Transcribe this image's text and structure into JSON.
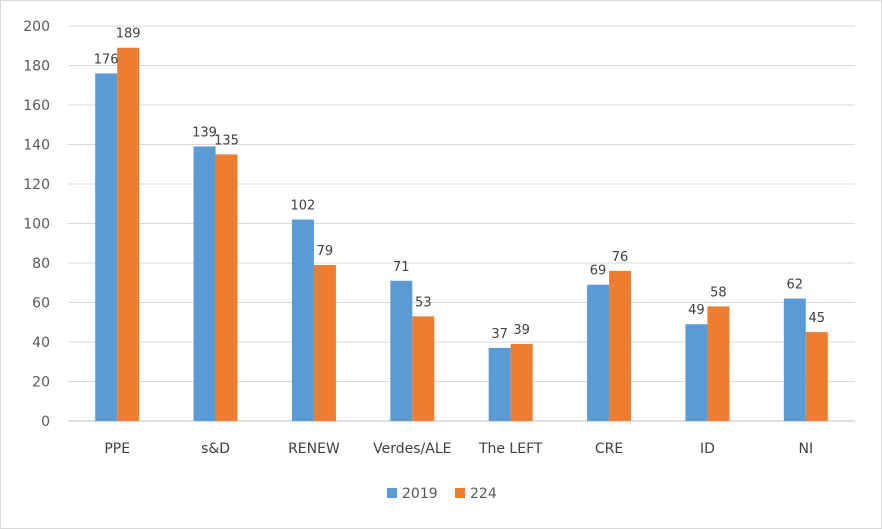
{
  "chart_data": {
    "type": "bar",
    "categories": [
      "PPE",
      "s&D",
      "RENEW",
      "Verdes/ALE",
      "The LEFT",
      "CRE",
      "ID",
      "NI"
    ],
    "series": [
      {
        "name": "2019",
        "values": [
          176,
          139,
          102,
          71,
          37,
          69,
          49,
          62
        ],
        "color": "#5b9bd5"
      },
      {
        "name": "224",
        "values": [
          189,
          135,
          79,
          53,
          39,
          76,
          58,
          45
        ],
        "color": "#ed7d31"
      }
    ],
    "ylim": [
      0,
      200
    ],
    "yticks": [
      0,
      20,
      40,
      60,
      80,
      100,
      120,
      140,
      160,
      180,
      200
    ],
    "grid": true,
    "legend": "bottom",
    "data_labels": true
  }
}
